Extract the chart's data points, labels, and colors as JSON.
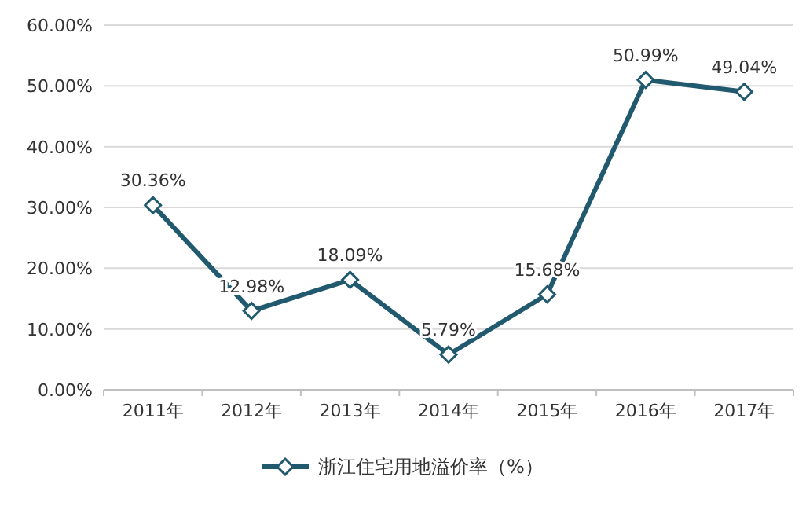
{
  "chart_data": {
    "type": "line",
    "categories": [
      "2011年",
      "2012年",
      "2013年",
      "2014年",
      "2015年",
      "2016年",
      "2017年"
    ],
    "series": [
      {
        "name": "浙江住宅用地溢价率（%）",
        "color": "#215a6e",
        "values": [
          30.36,
          12.98,
          18.09,
          5.79,
          15.68,
          50.99,
          49.04
        ],
        "value_labels": [
          "30.36%",
          "12.98%",
          "18.09%",
          "5.79%",
          "15.68%",
          "50.99%",
          "49.04%"
        ]
      }
    ],
    "ylim": [
      0,
      60
    ],
    "yticks": [
      {
        "value": 0,
        "label": "0.00%"
      },
      {
        "value": 10,
        "label": "10.00%"
      },
      {
        "value": 20,
        "label": "20.00%"
      },
      {
        "value": 30,
        "label": "30.00%"
      },
      {
        "value": 40,
        "label": "40.00%"
      },
      {
        "value": 50,
        "label": "50.00%"
      },
      {
        "value": 60,
        "label": "60.00%"
      }
    ],
    "grid": "y",
    "legend": "bottom",
    "marker": "diamond",
    "line_style": "solid"
  }
}
